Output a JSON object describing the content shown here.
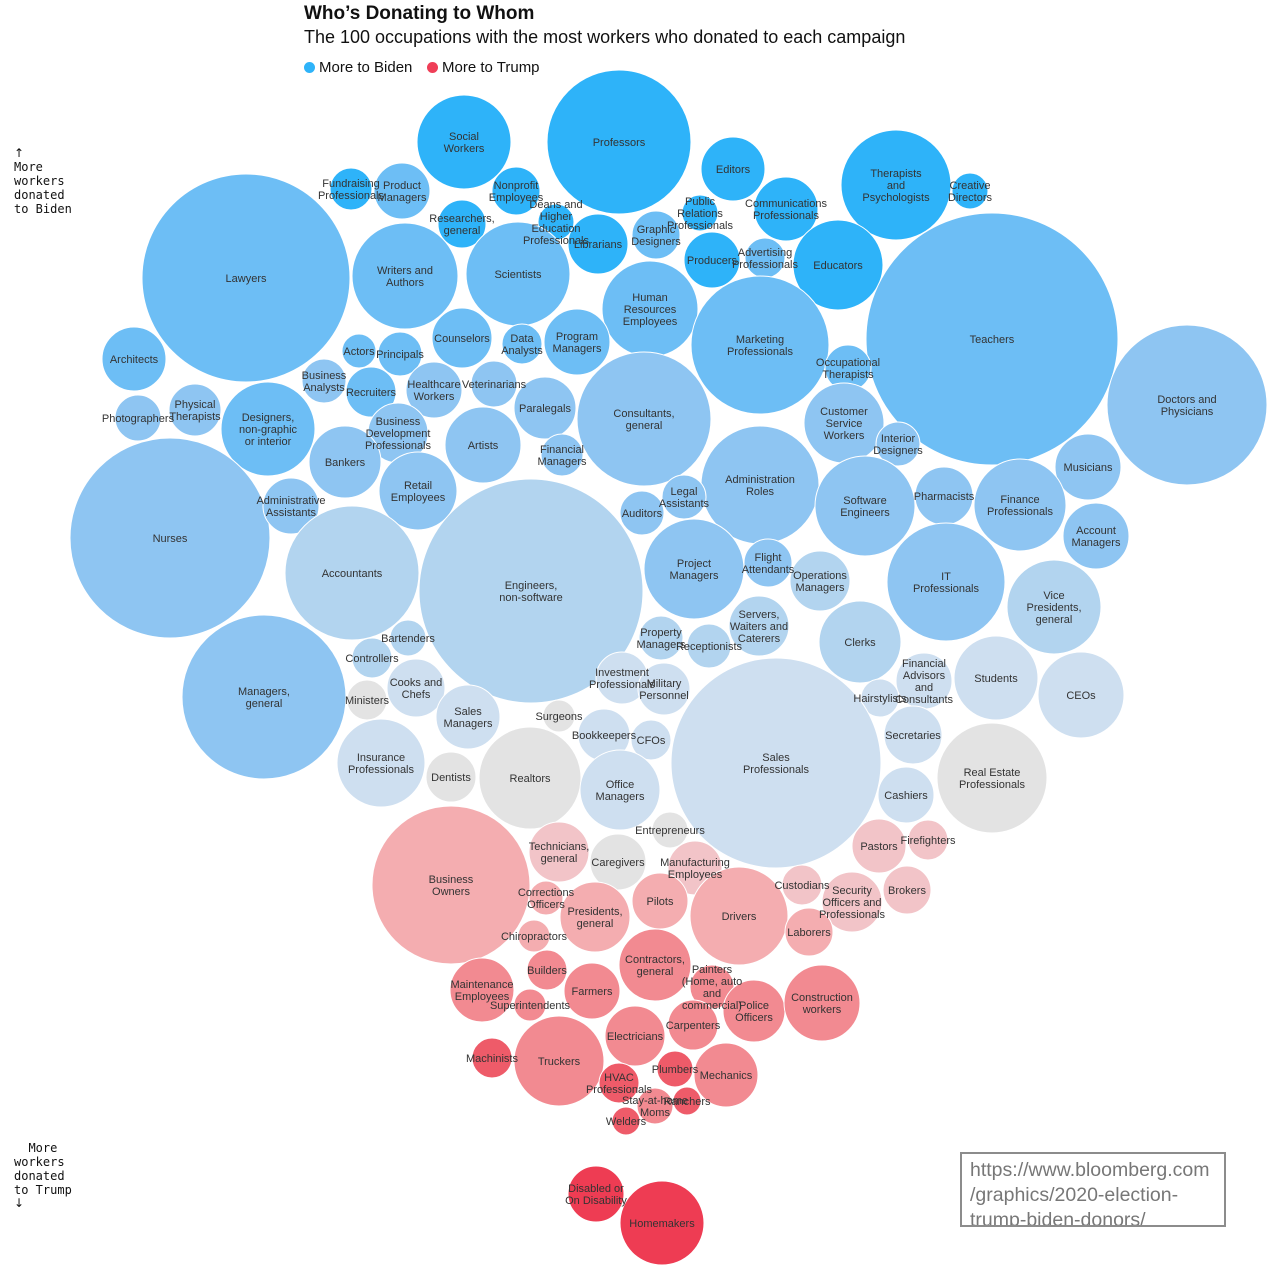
{
  "chart_data": {
    "type": "bubble",
    "title": "Who’s Donating to Whom",
    "subtitle": "The 100 occupations with the most workers who donated to each campaign",
    "legend": [
      {
        "label": "More to Biden",
        "color": "#2eb3f9"
      },
      {
        "label": "More to Trump",
        "color": "#ef3e57"
      }
    ],
    "axis_top_label": "More\nworkers\ndonated\nto Biden",
    "axis_bottom_label": "More\nworkers\ndonated\nto Trump",
    "axis_top_arrow": "↑",
    "axis_bottom_arrow": "↓",
    "colors": {
      "biden_strong": "#2eb3f9",
      "biden_medium": "#6dbef5",
      "biden_light": "#8ec5f2",
      "biden_pale": "#b2d4ef",
      "neutral_blue": "#cedff0",
      "neutral_gray": "#e3e3e3",
      "trump_pale": "#f2c4c8",
      "trump_light": "#f4adb0",
      "trump_medium": "#f28a91",
      "trump_strong": "#ee5b69",
      "trump_deep": "#ee3c53"
    },
    "note": "Positions and sizes of occupation bubbles are taken from the picture; lean is encoded by color.",
    "occupations": [
      {
        "name": "Social Workers",
        "lean": "biden_strong"
      },
      {
        "name": "Professors",
        "lean": "biden_strong"
      },
      {
        "name": "Editors",
        "lean": "biden_strong"
      },
      {
        "name": "Therapists and Psychologists",
        "lean": "biden_strong"
      },
      {
        "name": "Creative Directors",
        "lean": "biden_strong"
      },
      {
        "name": "Fundraising Professionals",
        "lean": "biden_strong"
      },
      {
        "name": "Product Managers",
        "lean": "biden_medium"
      },
      {
        "name": "Nonprofit Employees",
        "lean": "biden_strong"
      },
      {
        "name": "Researchers, general",
        "lean": "biden_strong"
      },
      {
        "name": "Deans and Higher Education Professionals",
        "lean": "biden_strong"
      },
      {
        "name": "Librarians",
        "lean": "biden_strong"
      },
      {
        "name": "Graphic Designers",
        "lean": "biden_medium"
      },
      {
        "name": "Public Relations Professionals",
        "lean": "biden_strong"
      },
      {
        "name": "Communications Professionals",
        "lean": "biden_strong"
      },
      {
        "name": "Advertising Professionals",
        "lean": "biden_medium"
      },
      {
        "name": "Producers",
        "lean": "biden_strong"
      },
      {
        "name": "Educators",
        "lean": "biden_strong"
      },
      {
        "name": "Lawyers",
        "lean": "biden_medium"
      },
      {
        "name": "Writers and Authors",
        "lean": "biden_medium"
      },
      {
        "name": "Scientists",
        "lean": "biden_medium"
      },
      {
        "name": "Human Resources Employees",
        "lean": "biden_medium"
      },
      {
        "name": "Marketing Professionals",
        "lean": "biden_medium"
      },
      {
        "name": "Teachers",
        "lean": "biden_medium"
      },
      {
        "name": "Architects",
        "lean": "biden_medium"
      },
      {
        "name": "Actors",
        "lean": "biden_medium"
      },
      {
        "name": "Principals",
        "lean": "biden_medium"
      },
      {
        "name": "Counselors",
        "lean": "biden_medium"
      },
      {
        "name": "Data Analysts",
        "lean": "biden_medium"
      },
      {
        "name": "Program Managers",
        "lean": "biden_medium"
      },
      {
        "name": "Occupational Therapists",
        "lean": "biden_medium"
      },
      {
        "name": "Doctors and Physicians",
        "lean": "biden_light"
      },
      {
        "name": "Photographers",
        "lean": "biden_light"
      },
      {
        "name": "Physical Therapists",
        "lean": "biden_light"
      },
      {
        "name": "Business Analysts",
        "lean": "biden_light"
      },
      {
        "name": "Recruiters",
        "lean": "biden_medium"
      },
      {
        "name": "Healthcare Workers",
        "lean": "biden_light"
      },
      {
        "name": "Veterinarians",
        "lean": "biden_light"
      },
      {
        "name": "Paralegals",
        "lean": "biden_light"
      },
      {
        "name": "Consultants, general",
        "lean": "biden_light"
      },
      {
        "name": "Customer Service Workers",
        "lean": "biden_light"
      },
      {
        "name": "Interior Designers",
        "lean": "biden_light"
      },
      {
        "name": "Musicians",
        "lean": "biden_light"
      },
      {
        "name": "Designers, non-graphic or interior",
        "lean": "biden_medium"
      },
      {
        "name": "Business Development Professionals",
        "lean": "biden_light"
      },
      {
        "name": "Artists",
        "lean": "biden_light"
      },
      {
        "name": "Financial Managers",
        "lean": "biden_light"
      },
      {
        "name": "Bankers",
        "lean": "biden_light"
      },
      {
        "name": "Administration Roles",
        "lean": "biden_light"
      },
      {
        "name": "Pharmacists",
        "lean": "biden_light"
      },
      {
        "name": "Finance Professionals",
        "lean": "biden_light"
      },
      {
        "name": "Account Managers",
        "lean": "biden_light"
      },
      {
        "name": "Nurses",
        "lean": "biden_light"
      },
      {
        "name": "Administrative Assistants",
        "lean": "biden_light"
      },
      {
        "name": "Retail Employees",
        "lean": "biden_light"
      },
      {
        "name": "Legal Assistants",
        "lean": "biden_light"
      },
      {
        "name": "Auditors",
        "lean": "biden_light"
      },
      {
        "name": "Software Engineers",
        "lean": "biden_light"
      },
      {
        "name": "Accountants",
        "lean": "biden_pale"
      },
      {
        "name": "Engineers, non-software",
        "lean": "biden_pale"
      },
      {
        "name": "Project Managers",
        "lean": "biden_light"
      },
      {
        "name": "Flight Attendants",
        "lean": "biden_light"
      },
      {
        "name": "Operations Managers",
        "lean": "biden_pale"
      },
      {
        "name": "IT Professionals",
        "lean": "biden_light"
      },
      {
        "name": "Vice Presidents, general",
        "lean": "biden_pale"
      },
      {
        "name": "Servers, Waiters and Caterers",
        "lean": "biden_pale"
      },
      {
        "name": "Clerks",
        "lean": "biden_pale"
      },
      {
        "name": "Managers, general",
        "lean": "biden_light"
      },
      {
        "name": "Bartenders",
        "lean": "biden_pale"
      },
      {
        "name": "Controllers",
        "lean": "biden_pale"
      },
      {
        "name": "Property Managers",
        "lean": "biden_pale"
      },
      {
        "name": "Receptionists",
        "lean": "biden_pale"
      },
      {
        "name": "Cooks and Chefs",
        "lean": "neutral_blue"
      },
      {
        "name": "Ministers",
        "lean": "neutral_gray"
      },
      {
        "name": "Investment Professionals",
        "lean": "neutral_blue"
      },
      {
        "name": "Military Personnel",
        "lean": "neutral_blue"
      },
      {
        "name": "Financial Advisors and Consultants",
        "lean": "neutral_blue"
      },
      {
        "name": "Students",
        "lean": "neutral_blue"
      },
      {
        "name": "CEOs",
        "lean": "neutral_blue"
      },
      {
        "name": "Hairstylists",
        "lean": "neutral_blue"
      },
      {
        "name": "Sales Managers",
        "lean": "neutral_blue"
      },
      {
        "name": "Surgeons",
        "lean": "neutral_gray"
      },
      {
        "name": "Bookkeepers",
        "lean": "neutral_blue"
      },
      {
        "name": "CFOs",
        "lean": "neutral_blue"
      },
      {
        "name": "Secretaries",
        "lean": "neutral_blue"
      },
      {
        "name": "Insurance Professionals",
        "lean": "neutral_blue"
      },
      {
        "name": "Dentists",
        "lean": "neutral_gray"
      },
      {
        "name": "Realtors",
        "lean": "neutral_gray"
      },
      {
        "name": "Office Managers",
        "lean": "neutral_blue"
      },
      {
        "name": "Sales Professionals",
        "lean": "neutral_blue"
      },
      {
        "name": "Cashiers",
        "lean": "neutral_blue"
      },
      {
        "name": "Real Estate Professionals",
        "lean": "neutral_gray"
      },
      {
        "name": "Entrepreneurs",
        "lean": "neutral_gray"
      },
      {
        "name": "Business Owners",
        "lean": "trump_light"
      },
      {
        "name": "Technicians, general",
        "lean": "trump_pale"
      },
      {
        "name": "Caregivers",
        "lean": "neutral_gray"
      },
      {
        "name": "Manufacturing Employees",
        "lean": "trump_pale"
      },
      {
        "name": "Pastors",
        "lean": "trump_pale"
      },
      {
        "name": "Firefighters",
        "lean": "trump_pale"
      },
      {
        "name": "Custodians",
        "lean": "trump_pale"
      },
      {
        "name": "Security Officers and Professionals",
        "lean": "trump_pale"
      },
      {
        "name": "Brokers",
        "lean": "trump_pale"
      },
      {
        "name": "Corrections Officers",
        "lean": "trump_light"
      },
      {
        "name": "Presidents, general",
        "lean": "trump_light"
      },
      {
        "name": "Pilots",
        "lean": "trump_light"
      },
      {
        "name": "Drivers",
        "lean": "trump_light"
      },
      {
        "name": "Laborers",
        "lean": "trump_light"
      },
      {
        "name": "Chiropractors",
        "lean": "trump_light"
      },
      {
        "name": "Contractors, general",
        "lean": "trump_medium"
      },
      {
        "name": "Builders",
        "lean": "trump_medium"
      },
      {
        "name": "Maintenance Employees",
        "lean": "trump_medium"
      },
      {
        "name": "Farmers",
        "lean": "trump_medium"
      },
      {
        "name": "Superintendents",
        "lean": "trump_medium"
      },
      {
        "name": "Painters (Home, auto and commercial)",
        "lean": "trump_medium"
      },
      {
        "name": "Police Officers",
        "lean": "trump_medium"
      },
      {
        "name": "Construction workers",
        "lean": "trump_medium"
      },
      {
        "name": "Electricians",
        "lean": "trump_medium"
      },
      {
        "name": "Carpenters",
        "lean": "trump_medium"
      },
      {
        "name": "Machinists",
        "lean": "trump_strong"
      },
      {
        "name": "Truckers",
        "lean": "trump_medium"
      },
      {
        "name": "Plumbers",
        "lean": "trump_strong"
      },
      {
        "name": "Mechanics",
        "lean": "trump_medium"
      },
      {
        "name": "HVAC Professionals",
        "lean": "trump_strong"
      },
      {
        "name": "Stay-at-home Moms",
        "lean": "trump_medium"
      },
      {
        "name": "Ranchers",
        "lean": "trump_strong"
      },
      {
        "name": "Welders",
        "lean": "trump_strong"
      },
      {
        "name": "Disabled or On Disability",
        "lean": "trump_deep"
      },
      {
        "name": "Homemakers",
        "lean": "trump_deep"
      }
    ]
  },
  "source": {
    "url_text": "https://www.bloomberg.com\n/graphics/2020-election-\ntrump-biden-donors/"
  }
}
